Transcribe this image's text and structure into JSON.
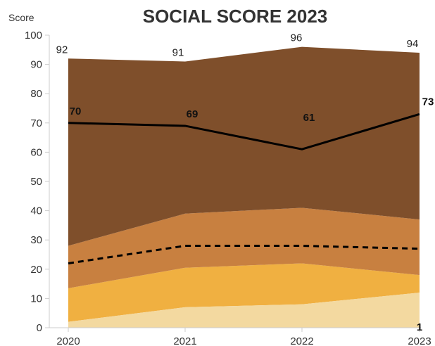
{
  "chart_data": {
    "type": "area",
    "title": "SOCIAL SCORE 2023",
    "ylabel": "Score",
    "xlabel": "",
    "ylim": [
      0,
      100
    ],
    "y_ticks": [
      0,
      10,
      20,
      30,
      40,
      50,
      60,
      70,
      80,
      90,
      100
    ],
    "x": [
      "2020",
      "2021",
      "2022",
      "2023"
    ],
    "bands": [
      {
        "lower": [
          2,
          7,
          8,
          12
        ],
        "upper": [
          13.5,
          20.5,
          22,
          18
        ],
        "color": "#f0b041"
      },
      {
        "lower": [
          13.5,
          20.5,
          22,
          18
        ],
        "upper": [
          28,
          39,
          41,
          37
        ],
        "color": "#c88040"
      },
      {
        "lower": [
          28,
          39,
          41,
          37
        ],
        "upper": [
          92,
          91,
          96,
          94
        ],
        "color": "#7f4f2b"
      },
      {
        "lower": [
          0,
          0,
          0,
          0
        ],
        "upper": [
          2,
          7,
          8,
          12
        ],
        "color": "#f3d9a0"
      }
    ],
    "max_values": [
      92,
      91,
      96,
      94
    ],
    "min_values": [
      null,
      null,
      null,
      1
    ],
    "median_line": {
      "values": [
        70,
        69,
        61,
        73
      ],
      "labels": [
        "70",
        "69",
        "61",
        "73"
      ],
      "color": "#000000"
    },
    "dashed_line": {
      "values": [
        22,
        28,
        28,
        27
      ],
      "color": "#000000"
    },
    "max_labels": [
      "92",
      "91",
      "96",
      "94"
    ],
    "min_labels": [
      "",
      "",
      "",
      "1"
    ],
    "grid": false
  }
}
